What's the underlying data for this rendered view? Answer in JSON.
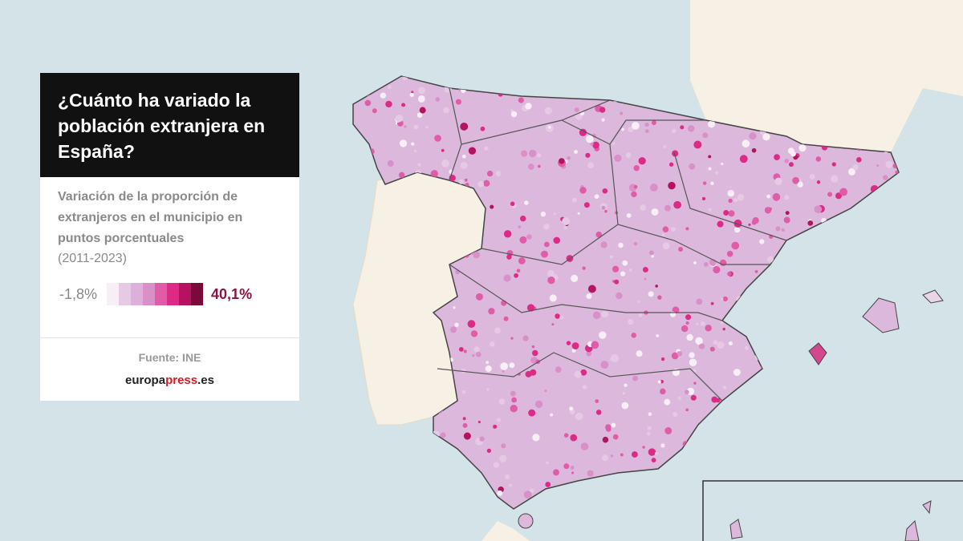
{
  "panel": {
    "title": "¿Cuánto ha variado la población extranjera en España?",
    "subtitle": "Variación de la proporción de extranjeros en el municipio en puntos porcentuales",
    "period": "(2011-2023)",
    "legend": {
      "min": "-1,8%",
      "max": "40,1%",
      "colors": [
        "#f7eef6",
        "#e6c9e4",
        "#dcb0d8",
        "#d98fc7",
        "#e05ca8",
        "#dc2a86",
        "#b5135f",
        "#7a0a3a"
      ]
    },
    "source": "Fuente: INE",
    "brand": {
      "part1": "europa",
      "part2": "press",
      "part3": ".es"
    }
  }
}
